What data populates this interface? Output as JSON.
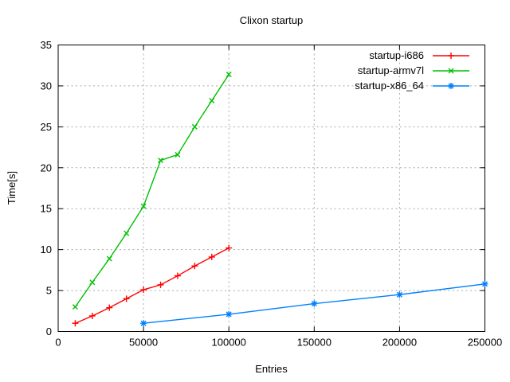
{
  "window": {
    "background": "#ffffff",
    "text_color": "#000000",
    "grid_color": "#aaaaaa"
  },
  "chart_data": {
    "type": "line",
    "title": "Clixon startup",
    "xlabel": "Entries",
    "ylabel": "Time[s]",
    "xlim": [
      0,
      250000
    ],
    "ylim": [
      0,
      35
    ],
    "xticks": [
      0,
      50000,
      100000,
      150000,
      200000,
      250000
    ],
    "yticks": [
      0,
      5,
      10,
      15,
      20,
      25,
      30,
      35
    ],
    "grid": true,
    "legend": {
      "position": "top-right-inside"
    },
    "series": [
      {
        "name": "startup-i686",
        "color": "#ff0000",
        "marker": "plus",
        "x": [
          10000,
          20000,
          30000,
          40000,
          50000,
          60000,
          70000,
          80000,
          90000,
          100000
        ],
        "y": [
          1.0,
          1.9,
          2.9,
          4.0,
          5.1,
          5.7,
          6.8,
          8.0,
          9.1,
          10.2
        ]
      },
      {
        "name": "startup-armv7l",
        "color": "#00c000",
        "marker": "cross",
        "x": [
          10000,
          20000,
          30000,
          40000,
          50000,
          60000,
          70000,
          80000,
          90000,
          100000
        ],
        "y": [
          3.0,
          6.0,
          8.9,
          12.0,
          15.3,
          20.9,
          21.6,
          25.0,
          28.2,
          31.4
        ]
      },
      {
        "name": "startup-x86_64",
        "color": "#0080ff",
        "marker": "asterisk",
        "x": [
          50000,
          100000,
          150000,
          200000,
          250000
        ],
        "y": [
          1.0,
          2.1,
          3.4,
          4.5,
          5.8
        ]
      }
    ]
  }
}
